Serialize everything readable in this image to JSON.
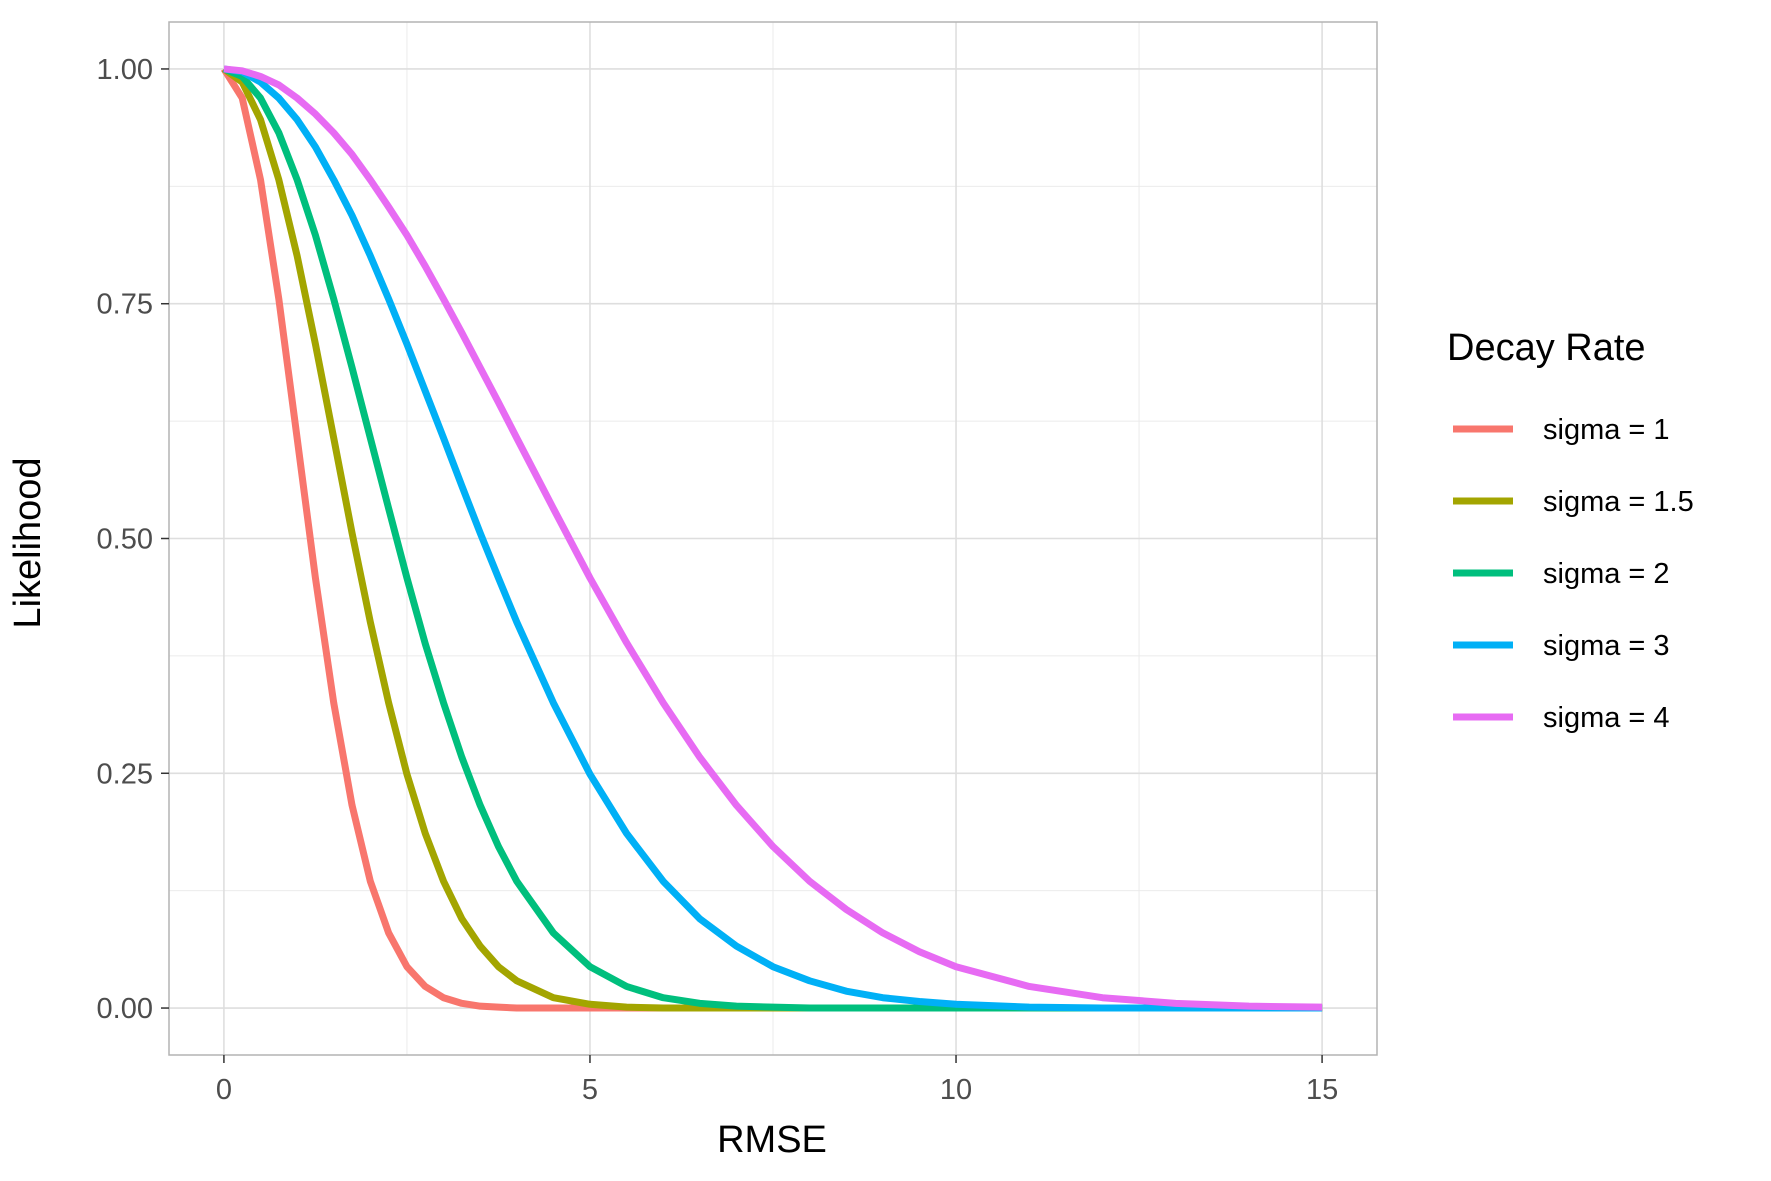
{
  "chart_data": {
    "type": "line",
    "title": "",
    "xlabel": "RMSE",
    "ylabel": "Likelihood",
    "xlim": [
      -0.75,
      15.75
    ],
    "ylim": [
      -0.05,
      1.05
    ],
    "x_ticks": [
      0,
      5,
      10,
      15
    ],
    "x_tick_labels": [
      "0",
      "5",
      "10",
      "15"
    ],
    "y_ticks": [
      0,
      0.25,
      0.5,
      0.75,
      1.0
    ],
    "y_tick_labels": [
      "0.00",
      "0.25",
      "0.50",
      "0.75",
      "1.00"
    ],
    "grid": true,
    "legend": {
      "title": "Decay Rate",
      "position": "right"
    },
    "x": [
      0,
      0.25,
      0.5,
      0.75,
      1,
      1.25,
      1.5,
      1.75,
      2,
      2.25,
      2.5,
      2.75,
      3,
      3.25,
      3.5,
      3.75,
      4,
      4.5,
      5,
      5.5,
      6,
      6.5,
      7,
      7.5,
      8,
      8.5,
      9,
      9.5,
      10,
      11,
      12,
      13,
      14,
      15
    ],
    "series": [
      {
        "name": "sigma = 1",
        "color": "#F8766D",
        "values": [
          1.0,
          0.969,
          0.882,
          0.755,
          0.607,
          0.458,
          0.325,
          0.216,
          0.135,
          0.08,
          0.044,
          0.023,
          0.011,
          0.005,
          0.002,
          0.001,
          0.0,
          0.0,
          0.0,
          0.0,
          0.0,
          0.0,
          0.0,
          0.0,
          0.0,
          0.0,
          0.0,
          0.0,
          0.0,
          0.0,
          0.0,
          0.0,
          0.0,
          0.0
        ]
      },
      {
        "name": "sigma = 1.5",
        "color": "#A3A500",
        "values": [
          1.0,
          0.986,
          0.946,
          0.882,
          0.801,
          0.707,
          0.607,
          0.506,
          0.411,
          0.325,
          0.249,
          0.186,
          0.135,
          0.095,
          0.066,
          0.044,
          0.029,
          0.011,
          0.004,
          0.001,
          0.0,
          0.0,
          0.0,
          0.0,
          0.0,
          0.0,
          0.0,
          0.0,
          0.0,
          0.0,
          0.0,
          0.0,
          0.0,
          0.0
        ]
      },
      {
        "name": "sigma = 2",
        "color": "#00BF7D",
        "values": [
          1.0,
          0.992,
          0.969,
          0.932,
          0.882,
          0.823,
          0.755,
          0.682,
          0.607,
          0.532,
          0.458,
          0.388,
          0.325,
          0.267,
          0.216,
          0.172,
          0.135,
          0.08,
          0.044,
          0.023,
          0.011,
          0.005,
          0.002,
          0.001,
          0.0,
          0.0,
          0.0,
          0.0,
          0.0,
          0.0,
          0.0,
          0.0,
          0.0,
          0.0
        ]
      },
      {
        "name": "sigma = 3",
        "color": "#00B0F6",
        "values": [
          1.0,
          0.997,
          0.986,
          0.969,
          0.946,
          0.917,
          0.882,
          0.844,
          0.801,
          0.755,
          0.707,
          0.657,
          0.607,
          0.556,
          0.506,
          0.458,
          0.411,
          0.325,
          0.249,
          0.186,
          0.135,
          0.095,
          0.066,
          0.044,
          0.029,
          0.018,
          0.011,
          0.007,
          0.004,
          0.001,
          0.0,
          0.0,
          0.0,
          0.0
        ]
      },
      {
        "name": "sigma = 4",
        "color": "#E76BF3",
        "values": [
          1.0,
          0.998,
          0.992,
          0.983,
          0.969,
          0.952,
          0.932,
          0.909,
          0.882,
          0.853,
          0.823,
          0.79,
          0.755,
          0.719,
          0.682,
          0.645,
          0.607,
          0.532,
          0.458,
          0.389,
          0.325,
          0.267,
          0.216,
          0.172,
          0.135,
          0.105,
          0.08,
          0.06,
          0.044,
          0.023,
          0.011,
          0.005,
          0.002,
          0.001
        ]
      }
    ]
  }
}
